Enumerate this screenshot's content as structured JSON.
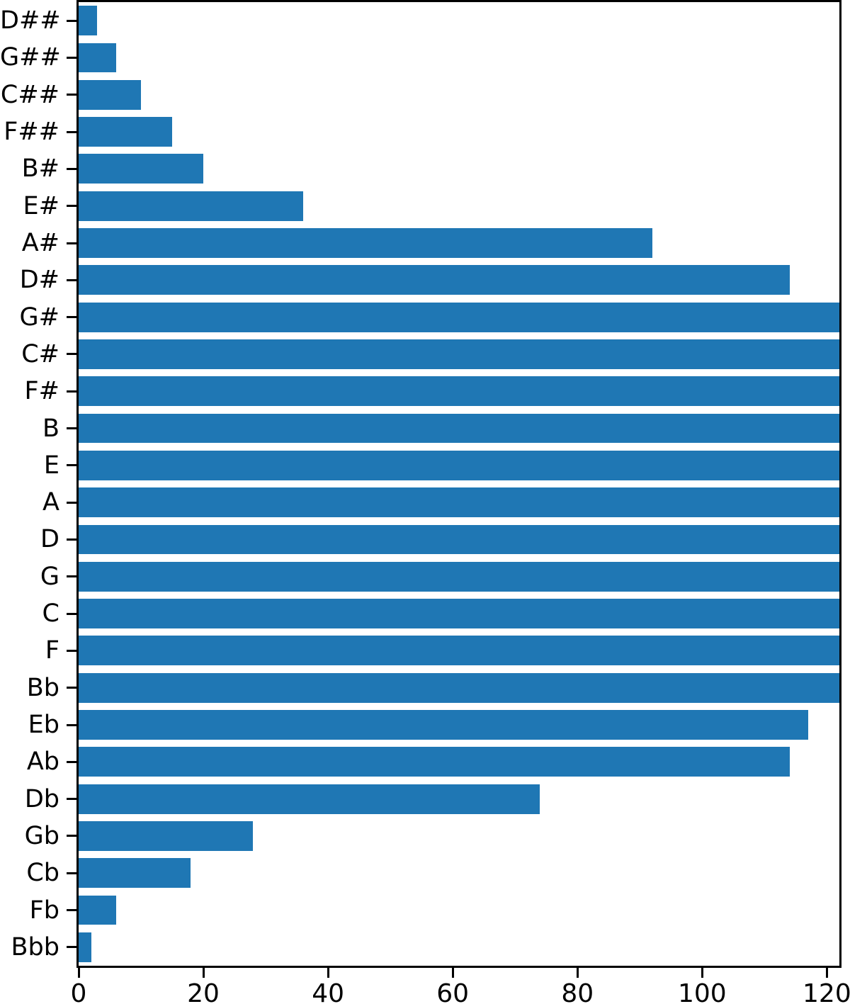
{
  "chart_data": {
    "type": "bar",
    "orientation": "horizontal",
    "title": "",
    "xlabel": "",
    "ylabel": "",
    "categories": [
      "D##",
      "G##",
      "C##",
      "F##",
      "B#",
      "E#",
      "A#",
      "D#",
      "G#",
      "C#",
      "F#",
      "B",
      "E",
      "A",
      "D",
      "G",
      "C",
      "F",
      "Bb",
      "Eb",
      "Ab",
      "Db",
      "Gb",
      "Cb",
      "Fb",
      "Bbb"
    ],
    "values": [
      3,
      6,
      10,
      15,
      20,
      36,
      92,
      114,
      122,
      122,
      122,
      122,
      122,
      122,
      122,
      122,
      122,
      122,
      122,
      117,
      114,
      74,
      28,
      18,
      6,
      2
    ],
    "clipped_categories": [
      "G#",
      "C#",
      "F#",
      "B",
      "E",
      "A",
      "D",
      "G",
      "C",
      "F",
      "Bb"
    ],
    "note": "Bars for clipped categories reach the right axis limit and are cut off; their true values are >= the xlim max.",
    "xlim": [
      0,
      122
    ],
    "xticks": [
      0,
      20,
      40,
      60,
      80,
      100,
      120
    ],
    "xtick_labels": [
      "0",
      "20",
      "40",
      "60",
      "80",
      "100",
      "120"
    ],
    "bar_color": "#1f77b4",
    "axis_color": "#000000",
    "background_color": "#ffffff",
    "grid": false,
    "legend": null
  }
}
